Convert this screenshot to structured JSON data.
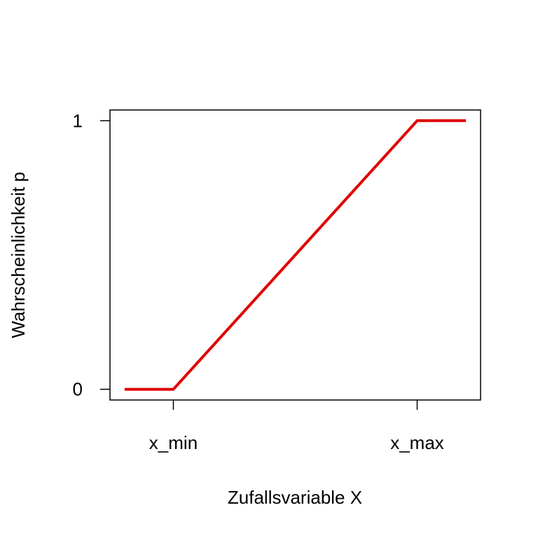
{
  "chart_data": {
    "type": "line",
    "title": "",
    "xlabel": "Zufallsvariable X",
    "ylabel": "Wahrscheinlichkeit p",
    "x": [
      -1,
      0,
      5,
      6
    ],
    "x_ticks": [
      {
        "value": 0,
        "label": "x_min"
      },
      {
        "value": 5,
        "label": "x_max"
      }
    ],
    "y_ticks": [
      {
        "value": 0,
        "label": "0"
      },
      {
        "value": 1,
        "label": "1"
      }
    ],
    "series": [
      {
        "values": [
          0,
          0,
          1,
          1
        ],
        "color": "#e00000"
      }
    ],
    "xlim": [
      -1.3,
      6.3
    ],
    "ylim": [
      -0.04,
      1.04
    ],
    "grid": false,
    "legend": "none"
  }
}
